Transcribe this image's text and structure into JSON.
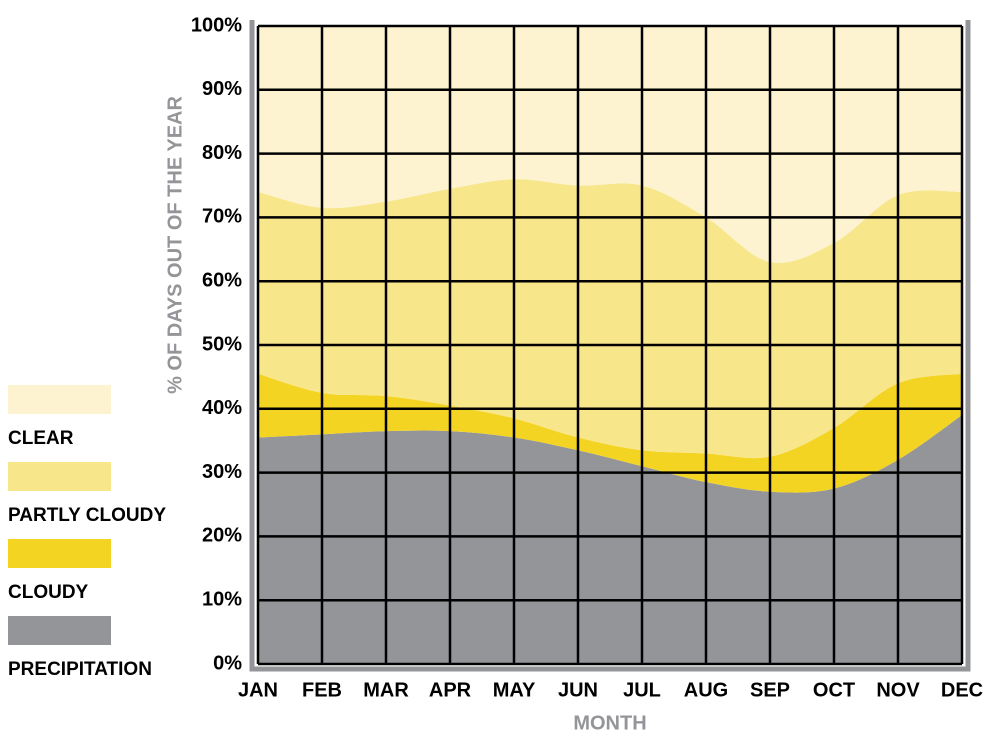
{
  "chart_data": {
    "type": "stacked-area",
    "xlabel": "MONTH",
    "ylabel": "% OF DAYS OUT OF THE YEAR",
    "categories": [
      "JAN",
      "FEB",
      "MAR",
      "APR",
      "MAY",
      "JUN",
      "JUL",
      "AUG",
      "SEP",
      "OCT",
      "NOV",
      "DEC"
    ],
    "ylim": [
      0,
      100
    ],
    "yticks": [
      {
        "value": 0,
        "label": "0%"
      },
      {
        "value": 10,
        "label": "10%"
      },
      {
        "value": 20,
        "label": "20%"
      },
      {
        "value": 30,
        "label": "30%"
      },
      {
        "value": 40,
        "label": "40%"
      },
      {
        "value": 50,
        "label": "50%"
      },
      {
        "value": 60,
        "label": "60%"
      },
      {
        "value": 70,
        "label": "70%"
      },
      {
        "value": 80,
        "label": "80%"
      },
      {
        "value": 90,
        "label": "90%"
      },
      {
        "value": 100,
        "label": "100%"
      }
    ],
    "grid": true,
    "legend": "left",
    "series": [
      {
        "name": "PRECIPITATION",
        "color": "#939598",
        "values": [
          35.5,
          36,
          36.5,
          36.5,
          35.5,
          33.5,
          31,
          28.5,
          27,
          27.5,
          32,
          39
        ]
      },
      {
        "name": "CLOUDY",
        "color": "#f3d423",
        "values": [
          10,
          6.5,
          5.5,
          4,
          3,
          2,
          2.5,
          4.5,
          5.5,
          9.5,
          12,
          6.5
        ]
      },
      {
        "name": "PARTLY CLOUDY",
        "color": "#f8e68a",
        "values": [
          28.5,
          29,
          30.5,
          34,
          37.5,
          39.5,
          41.5,
          37,
          30.5,
          29,
          29.5,
          28.5
        ]
      },
      {
        "name": "CLEAR",
        "color": "#fdf3d0",
        "values": [
          26,
          28.5,
          27.5,
          25.5,
          24,
          25,
          25,
          30,
          37,
          34,
          26.5,
          26
        ]
      }
    ]
  }
}
